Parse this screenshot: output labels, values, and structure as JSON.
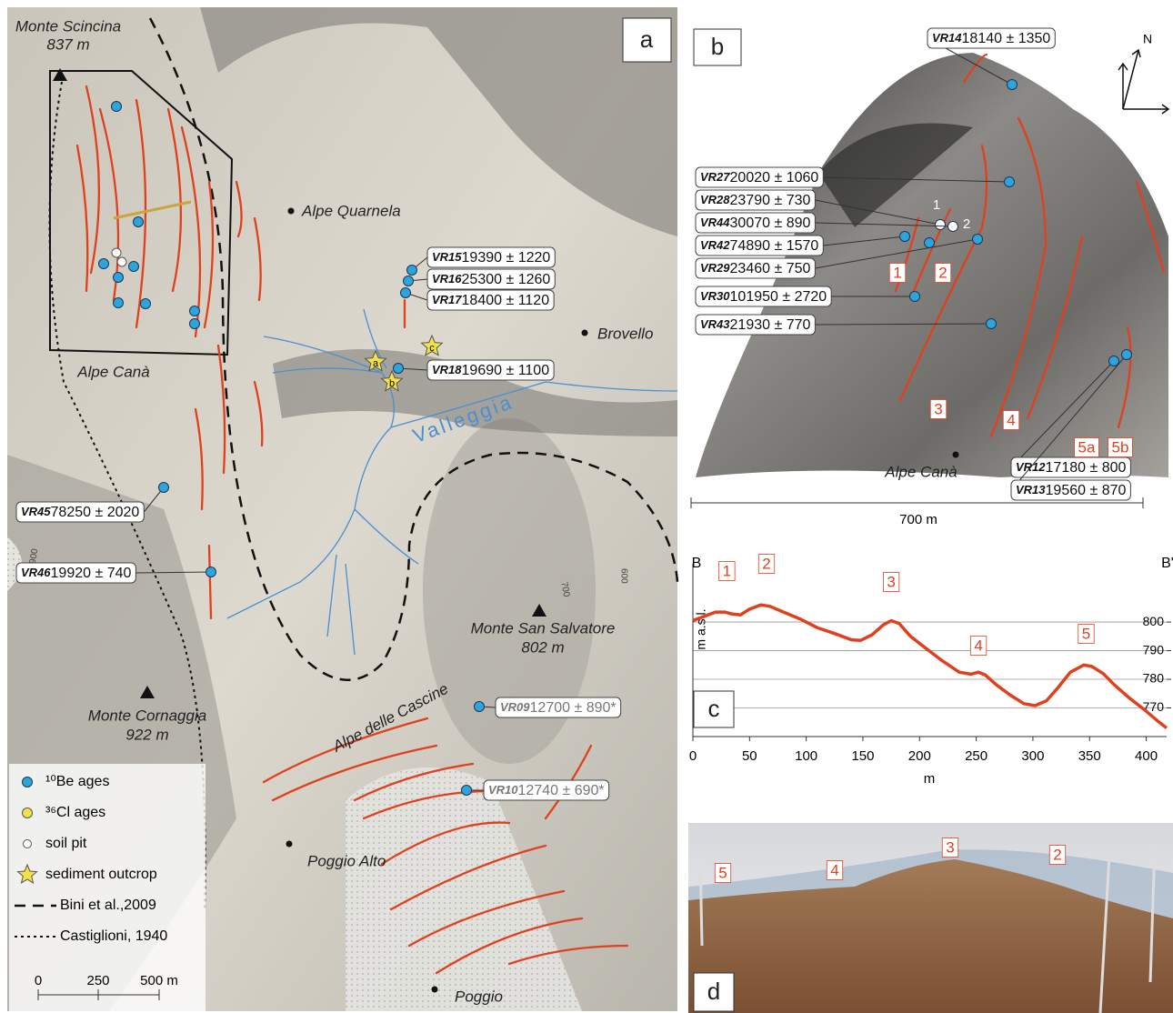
{
  "panel_a": {
    "letter": "a",
    "places": [
      "Monte Scincina",
      "837 m",
      "Alpe Quarnela",
      "Brovello",
      "Alpe Canà",
      "Valleggia",
      "Monte San Salvatore",
      "802 m",
      "Monte Cornaggia",
      "922 m",
      "Alpe delle Cascine",
      "Poggio Alto",
      "Poggio"
    ],
    "contour_labels": [
      "700",
      "600",
      "900"
    ],
    "outcrops": [
      "a",
      "b",
      "c"
    ],
    "samples": [
      {
        "id": "VR15",
        "age": "19390 ± 1220"
      },
      {
        "id": "VR16",
        "age": "25300 ± 1260"
      },
      {
        "id": "VR17",
        "age": "18400 ± 1120"
      },
      {
        "id": "VR18",
        "age": "19690 ± 1100"
      },
      {
        "id": "VR45",
        "age": "78250 ± 2020"
      },
      {
        "id": "VR46",
        "age": "19920 ± 740"
      },
      {
        "id": "VR09",
        "age": "12700 ± 890*"
      },
      {
        "id": "VR10",
        "age": "12740 ± 690*"
      }
    ],
    "legend": [
      "¹⁰Be ages",
      "³⁶Cl ages",
      "soil pit",
      "sediment outcrop",
      "Bini et al.,2009",
      "Castiglioni, 1940"
    ],
    "scale": [
      "0",
      "250",
      "500 m"
    ]
  },
  "panel_b": {
    "letter": "b",
    "north": "N",
    "samples": [
      {
        "id": "VR14",
        "age": "18140 ± 1350"
      },
      {
        "id": "VR27",
        "age": "20020 ± 1060"
      },
      {
        "id": "VR28",
        "age": "23790 ± 730"
      },
      {
        "id": "VR44",
        "age": "30070 ± 890"
      },
      {
        "id": "VR42",
        "age": "74890 ± 1570"
      },
      {
        "id": "VR29",
        "age": "23460 ± 750"
      },
      {
        "id": "VR30",
        "age": "101950 ± 2720"
      },
      {
        "id": "VR43",
        "age": "21930 ± 770"
      },
      {
        "id": "VR12",
        "age": "17180 ± 800"
      },
      {
        "id": "VR13",
        "age": "19560 ± 870"
      }
    ],
    "ridges": [
      "1",
      "2",
      "3",
      "4",
      "5a",
      "5b"
    ],
    "pits": [
      "1",
      "2"
    ],
    "place": "Alpe Canà",
    "scale": "700 m"
  },
  "chart_data": {
    "type": "line",
    "letter": "c",
    "start_label": "B",
    "end_label": "B'",
    "x_label": "m",
    "y_label": "m a.s.l.",
    "peaks": [
      "1",
      "2",
      "3",
      "4",
      "5"
    ],
    "x": [
      0,
      10,
      20,
      28,
      35,
      42,
      50,
      60,
      68,
      80,
      95,
      110,
      125,
      140,
      148,
      158,
      168,
      175,
      182,
      192,
      205,
      220,
      235,
      245,
      252,
      258,
      268,
      280,
      292,
      302,
      312,
      322,
      333,
      345,
      352,
      362,
      372,
      385,
      398,
      410,
      418
    ],
    "values": [
      800.5,
      802,
      803.5,
      803.5,
      802.8,
      802.5,
      804.5,
      806,
      805.5,
      803.5,
      801,
      798,
      796,
      793.8,
      793.6,
      795.5,
      799,
      800.5,
      799.5,
      795,
      791,
      786.5,
      782.5,
      781.8,
      782.5,
      781.5,
      778,
      774.5,
      771.5,
      770.8,
      772.5,
      777,
      782.5,
      785,
      784.5,
      782,
      778,
      773.5,
      769.5,
      765.5,
      763
    ],
    "color": "#e0401e",
    "xlim": [
      0,
      418
    ],
    "ylim": [
      760,
      814
    ],
    "xticks": [
      0,
      50,
      100,
      150,
      200,
      250,
      300,
      350,
      400
    ],
    "yticks": [
      770,
      780,
      790,
      800
    ],
    "grid": true
  },
  "panel_d": {
    "letter": "d",
    "labels": [
      "5",
      "4",
      "3",
      "2"
    ]
  }
}
